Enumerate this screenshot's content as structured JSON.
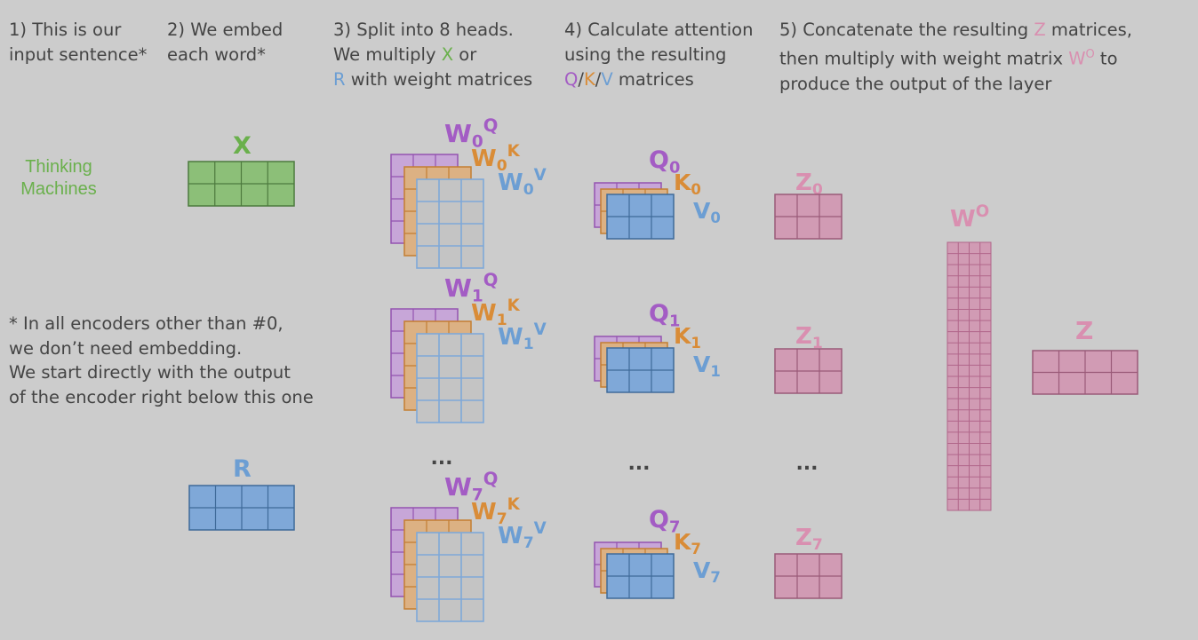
{
  "steps": {
    "s1": [
      "1) This is our",
      "input sentence*"
    ],
    "s2": [
      "2) We embed",
      "each word*"
    ],
    "s3": {
      "l1": "3) Split into 8 heads.",
      "l2a": "We multiply ",
      "l2x": "X",
      "l2b": " or",
      "l3r": "R",
      "l3b": " with weight matrices"
    },
    "s4": {
      "l1": "4) Calculate attention",
      "l2": "using the resulting",
      "q": "Q",
      "slash1": "/",
      "k": "K",
      "slash2": "/",
      "v": "V",
      "tail": " matrices"
    },
    "s5": {
      "l1a": "5) Concatenate the resulting ",
      "l1z": "Z",
      "l1b": " matrices,",
      "l2a": "then multiply with weight matrix ",
      "l2w": "W",
      "l2o": "O",
      "l2b": " to",
      "l3": "produce the output of the layer"
    }
  },
  "note": [
    "* In all encoders other than #0,",
    "we don’t need embedding.",
    "We start directly with the output",
    "of the encoder right below this one"
  ],
  "input_sentence": [
    "Thinking",
    "Machines"
  ],
  "labels": {
    "x": "X",
    "r": "R",
    "w_letter": "W",
    "q_sup": "Q",
    "k_sup": "K",
    "v_sup": "V",
    "z_letter": "Z",
    "z_out": "Z",
    "wo_letter": "W",
    "wo_sup": "O",
    "ellipsis": "...",
    "heads": [
      {
        "index": "0",
        "q": "Q",
        "k": "K",
        "v": "V"
      },
      {
        "index": "1",
        "q": "Q",
        "k": "K",
        "v": "V"
      },
      {
        "index": "7",
        "q": "Q",
        "k": "K",
        "v": "V"
      }
    ]
  },
  "colors": {
    "text": "#444444",
    "green": "#6ab04c",
    "blue": "#6c9ed3",
    "pink": "#d98fb0",
    "purple": "#a35cc4",
    "orange": "#d98c37",
    "background": "#cccccc"
  }
}
